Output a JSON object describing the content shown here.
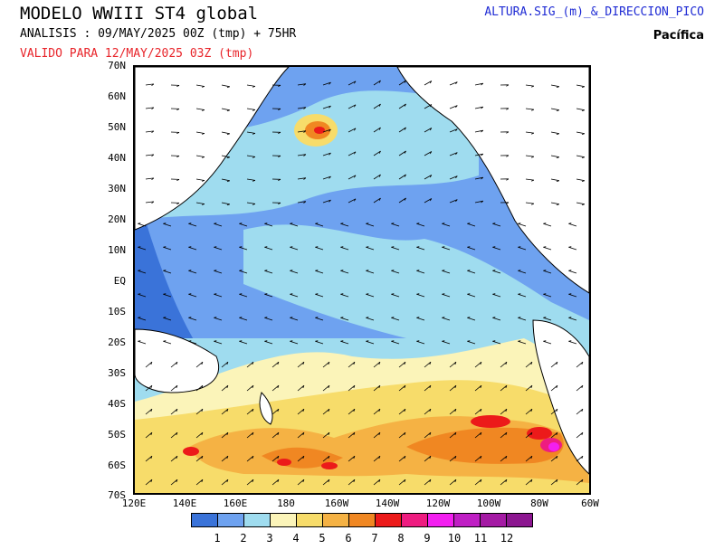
{
  "header": {
    "title": "MODELO WWIII ST4 global",
    "analysis": "ANALISIS : 09/MAY/2025 00Z  (tmp) + 75HR",
    "valid": "VALIDO PARA  12/MAY/2025 03Z  (tmp)",
    "field": "ALTURA.SIG_(m)_&_DIRECCION_PICO",
    "region": "Pacífica"
  },
  "axes": {
    "lat_labels": [
      "70N",
      "60N",
      "50N",
      "40N",
      "30N",
      "20N",
      "10N",
      "EQ",
      "10S",
      "20S",
      "30S",
      "40S",
      "50S",
      "60S",
      "70S"
    ],
    "lon_labels": [
      "120E",
      "140E",
      "160E",
      "180",
      "160W",
      "140W",
      "120W",
      "100W",
      "80W",
      "60W"
    ]
  },
  "legend": {
    "labels": [
      "1",
      "2",
      "3",
      "4",
      "5",
      "6",
      "7",
      "8",
      "9",
      "10",
      "11",
      "12"
    ],
    "colors": [
      "#3a73d9",
      "#6ea2f0",
      "#9fdcef",
      "#fbf4b9",
      "#f7dc6a",
      "#f5b244",
      "#f08722",
      "#ec1a1a",
      "#ee1c80",
      "#f31ff0",
      "#bf1fc4",
      "#a41aa4",
      "#8c1690"
    ]
  },
  "colors": {
    "land": "#ffffff",
    "sea_base": "#6ea2f0"
  }
}
